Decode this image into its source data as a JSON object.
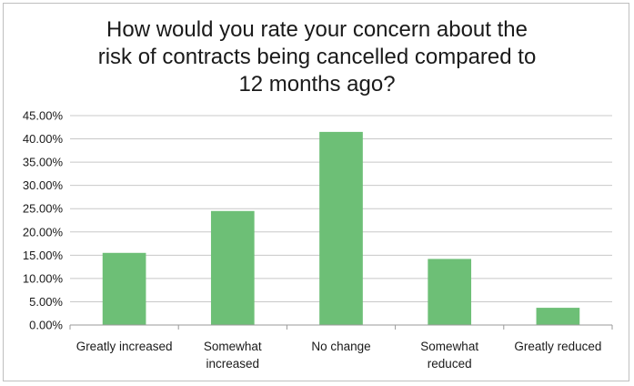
{
  "chart_data": {
    "type": "bar",
    "title_lines": [
      "How would you rate your concern about the",
      "risk of contracts being cancelled compared to",
      "12 months ago?"
    ],
    "categories": [
      [
        "Greatly increased"
      ],
      [
        "Somewhat",
        "increased"
      ],
      [
        "No change"
      ],
      [
        "Somewhat",
        "reduced"
      ],
      [
        "Greatly reduced"
      ]
    ],
    "values": [
      0.155,
      0.245,
      0.415,
      0.142,
      0.037
    ],
    "ylim": [
      0,
      0.45
    ],
    "ytick_step": 0.05,
    "ytick_labels": [
      "0.00%",
      "5.00%",
      "10.00%",
      "15.00%",
      "20.00%",
      "25.00%",
      "30.00%",
      "35.00%",
      "40.00%",
      "45.00%"
    ],
    "grid": true,
    "legend": "none",
    "bar_color": "#6dbf76",
    "grid_color": "#c8c8c8",
    "axis_color": "#9a9a9a"
  }
}
